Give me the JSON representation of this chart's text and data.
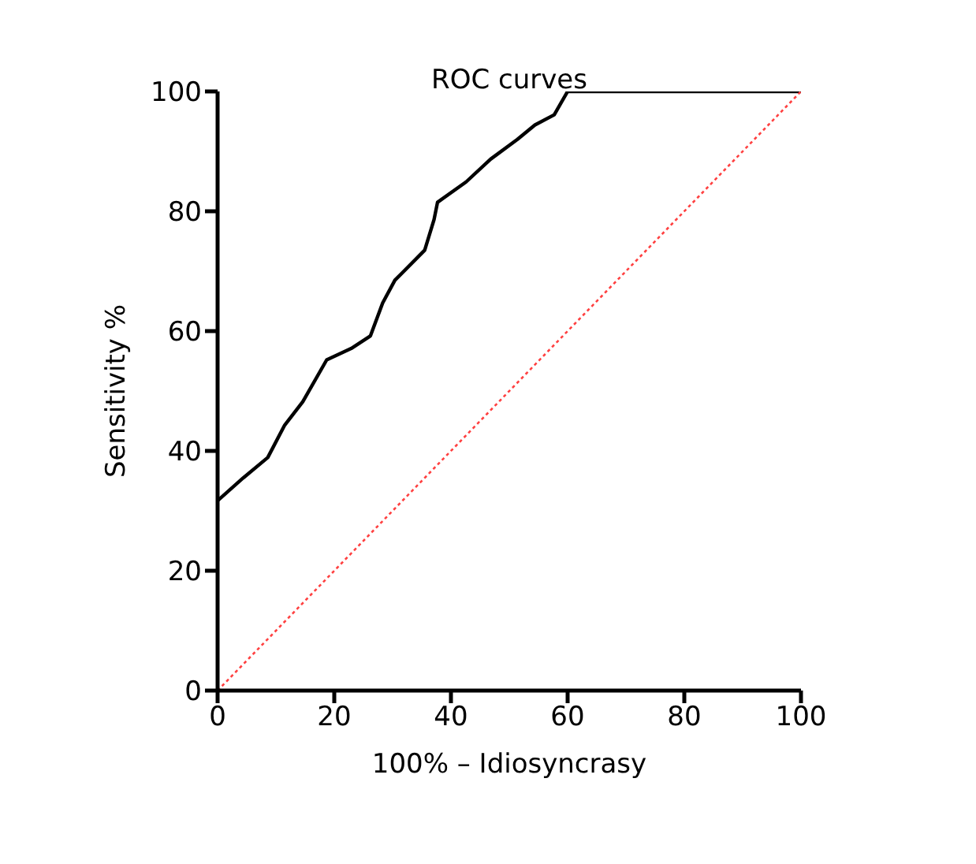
{
  "chart_data": {
    "type": "line",
    "title": "ROC curves",
    "xlabel": "100% – Idiosyncrasy",
    "ylabel": "Sensitivity %",
    "series": [
      {
        "color": "#000000",
        "line_style": "solid",
        "x": [
          0,
          4.4,
          8.6,
          11.5,
          14.6,
          18.7,
          22.9,
          26.2,
          28.3,
          30.4,
          35.5,
          37.1,
          37.7,
          42.6,
          46.8,
          51.4,
          54.4,
          57.7,
          60,
          100
        ],
        "values": [
          31.7,
          35.5,
          38.9,
          44.3,
          48.2,
          55.2,
          57.1,
          59.2,
          64.7,
          68.5,
          73.5,
          78.6,
          81.5,
          84.9,
          88.7,
          92,
          94.4,
          96.1,
          100,
          100
        ]
      },
      {
        "color": "#ff4040",
        "line_style": "dotted",
        "x": [
          0,
          100
        ],
        "values": [
          0,
          100
        ]
      }
    ],
    "xlim": [
      0,
      100
    ],
    "xticks": [
      0,
      20,
      40,
      60,
      80,
      100
    ],
    "ylim": [
      0,
      100
    ],
    "yticks": [
      0,
      20,
      40,
      60,
      80,
      100
    ],
    "grid": false,
    "marker": "none"
  }
}
